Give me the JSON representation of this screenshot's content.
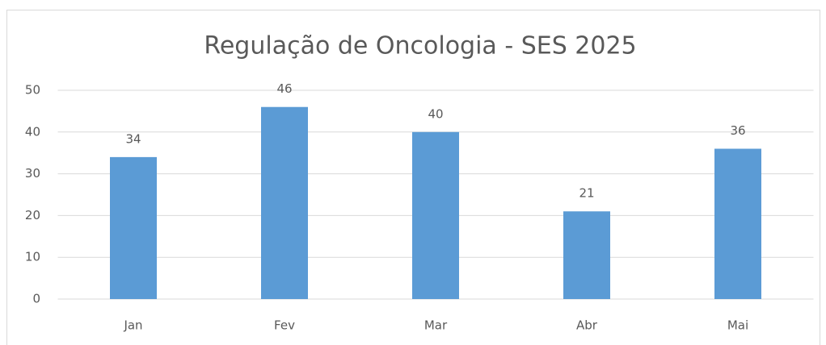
{
  "chart_data": {
    "type": "bar",
    "title": "Regulação de Oncologia - SES 2025",
    "categories": [
      "Jan",
      "Fev",
      "Mar",
      "Abr",
      "Mai"
    ],
    "values": [
      34,
      46,
      40,
      21,
      36
    ],
    "color": "#5b9bd5",
    "ylim": [
      0,
      50
    ],
    "yticks": [
      0,
      10,
      20,
      30,
      40,
      50
    ],
    "grid": true,
    "data_labels": true
  }
}
